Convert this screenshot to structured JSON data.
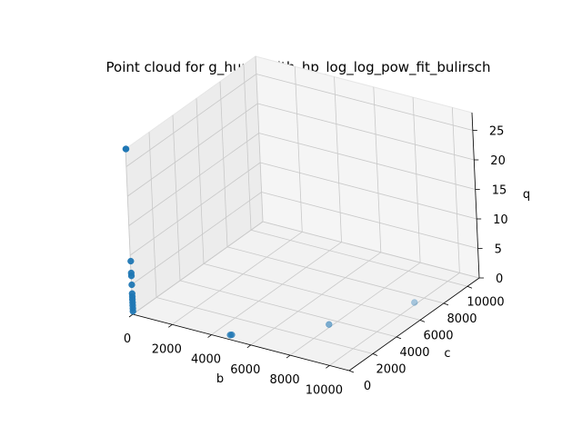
{
  "chart_data": {
    "type": "scatter",
    "projection": "3d",
    "title": "Point cloud for g_hundredth_hp_log_log_pow_fit_bulirsch",
    "xlabel": "b",
    "ylabel": "c",
    "zlabel": "q",
    "xlim": [
      0,
      11000
    ],
    "ylim": [
      0,
      11000
    ],
    "zlim": [
      0,
      28
    ],
    "x_ticks": [
      0,
      2000,
      4000,
      6000,
      8000,
      10000
    ],
    "y_ticks": [
      0,
      2000,
      4000,
      6000,
      8000,
      10000
    ],
    "z_ticks": [
      0,
      5,
      10,
      15,
      20,
      25
    ],
    "x_tick_labels": [
      "0",
      "2000",
      "4000",
      "6000",
      "8000",
      "10000"
    ],
    "y_tick_labels": [
      "0",
      "2000",
      "4000",
      "6000",
      "8000",
      "10000"
    ],
    "z_tick_labels": [
      "0",
      "5",
      "10",
      "15",
      "20",
      "25"
    ],
    "grid": true,
    "marker_color": "#1f77b4",
    "points": [
      {
        "x": 10,
        "y": 10,
        "z": 28
      },
      {
        "x": 20,
        "y": 10,
        "z": 28
      },
      {
        "x": 10,
        "y": 10,
        "z": 9
      },
      {
        "x": 10,
        "y": 10,
        "z": 7
      },
      {
        "x": 10,
        "y": 10,
        "z": 6.5
      },
      {
        "x": 10,
        "y": 10,
        "z": 5
      },
      {
        "x": 10,
        "y": 10,
        "z": 3.5
      },
      {
        "x": 10,
        "y": 10,
        "z": 3
      },
      {
        "x": 10,
        "y": 10,
        "z": 2.5
      },
      {
        "x": 10,
        "y": 10,
        "z": 2
      },
      {
        "x": 10,
        "y": 10,
        "z": 1.5
      },
      {
        "x": 10,
        "y": 10,
        "z": 1
      },
      {
        "x": 10,
        "y": 10,
        "z": 0.5
      },
      {
        "x": 4900,
        "y": 100,
        "z": 0.6
      },
      {
        "x": 4950,
        "y": 150,
        "z": 0.6
      },
      {
        "x": 8000,
        "y": 3300,
        "z": 0.5
      },
      {
        "x": 10000,
        "y": 7200,
        "z": 0.4
      }
    ]
  }
}
